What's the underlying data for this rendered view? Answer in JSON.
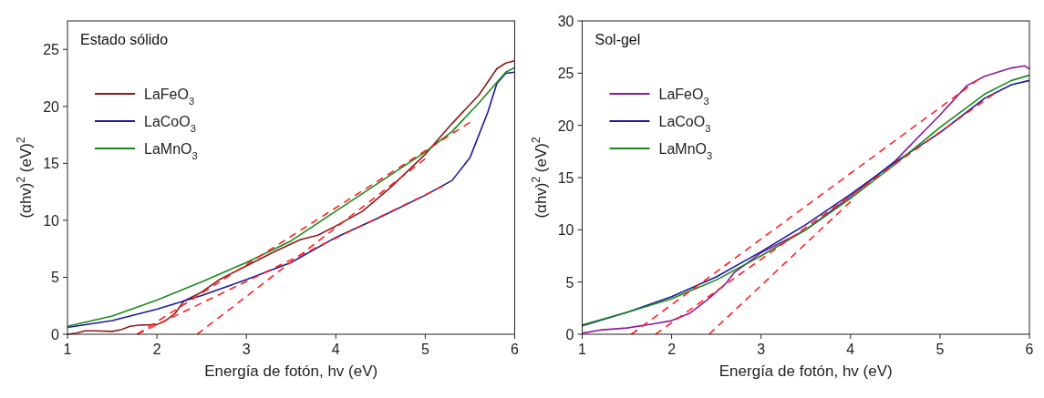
{
  "chart_data": [
    {
      "type": "line",
      "title": "Estado sólido",
      "xlabel": "Energía de fotón, hv (eV)",
      "ylabel": "(αhv)$^{2}$ (eV)$^{2}$",
      "xlim": [
        1,
        6
      ],
      "xticks": [
        1,
        2,
        3,
        4,
        5,
        6
      ],
      "ylim": [
        0,
        27.5
      ],
      "yticks": [
        0,
        5,
        10,
        15,
        20,
        25
      ],
      "legend": "top left",
      "grid": false,
      "series": [
        {
          "name": "LaFeO$_{3}$",
          "color": "#8b1a1a",
          "x": [
            1.0,
            1.1,
            1.2,
            1.3,
            1.5,
            1.6,
            1.7,
            1.8,
            2.0,
            2.1,
            2.2,
            2.3,
            2.5,
            2.7,
            3.0,
            3.3,
            3.6,
            3.8,
            4.0,
            4.3,
            4.6,
            5.0,
            5.3,
            5.6,
            5.8,
            5.9,
            6.0
          ],
          "values": [
            0,
            0.1,
            0.3,
            0.3,
            0.25,
            0.4,
            0.7,
            0.8,
            0.85,
            1.2,
            1.8,
            2.9,
            3.7,
            4.8,
            6.0,
            7.2,
            8.3,
            8.7,
            9.5,
            10.8,
            12.8,
            15.8,
            18.5,
            21.0,
            23.3,
            23.8,
            24.0
          ]
        },
        {
          "name": "LaCoO$_{3}$",
          "color": "#1a1a9a",
          "x": [
            1.0,
            1.5,
            2.0,
            2.5,
            3.0,
            3.5,
            4.0,
            4.5,
            5.0,
            5.3,
            5.5,
            5.7,
            5.8,
            5.9,
            6.0
          ],
          "values": [
            0.6,
            1.2,
            2.2,
            3.4,
            4.8,
            6.3,
            8.5,
            10.3,
            12.2,
            13.5,
            15.5,
            19.5,
            22.0,
            22.9,
            23.0
          ]
        },
        {
          "name": "LaMnO$_{3}$",
          "color": "#1a8a1a",
          "x": [
            1.0,
            1.5,
            2.0,
            2.5,
            3.0,
            3.5,
            4.0,
            4.5,
            5.0,
            5.3,
            5.6,
            5.8,
            5.9,
            6.0
          ],
          "values": [
            0.7,
            1.6,
            3.0,
            4.6,
            6.3,
            8.2,
            10.8,
            13.4,
            16.0,
            17.8,
            20.3,
            22.1,
            23.0,
            23.4
          ]
        },
        {
          "color": "#ff2020",
          "line_style": "dashed",
          "x": [
            1.78,
            5.5
          ],
          "values": [
            0,
            18.6
          ]
        },
        {
          "color": "#ff2020",
          "line_style": "dashed",
          "x": [
            1.78,
            5.2
          ],
          "values": [
            0,
            13.0
          ]
        },
        {
          "color": "#ff2020",
          "line_style": "dashed",
          "x": [
            2.45,
            5.0
          ],
          "values": [
            0,
            15.4
          ]
        }
      ]
    },
    {
      "type": "line",
      "title": "Sol-gel",
      "xlabel": "Energía de fotón, hv (eV)",
      "ylabel": "(αhv)$^{2}$ (eV)$^{2}$",
      "xlim": [
        1,
        6
      ],
      "xticks": [
        1,
        2,
        3,
        4,
        5,
        6
      ],
      "ylim": [
        0,
        30
      ],
      "yticks": [
        0,
        5,
        10,
        15,
        20,
        25,
        30
      ],
      "legend": "top left",
      "grid": false,
      "series": [
        {
          "name": "LaFeO$_{3}$",
          "color": "#8b1a9b",
          "x": [
            1.0,
            1.2,
            1.5,
            1.8,
            2.0,
            2.2,
            2.4,
            2.6,
            2.7,
            3.0,
            3.5,
            4.0,
            4.5,
            5.0,
            5.3,
            5.5,
            5.8,
            5.95,
            6.0
          ],
          "values": [
            0.1,
            0.4,
            0.6,
            1.0,
            1.3,
            2.0,
            3.3,
            4.8,
            5.9,
            7.8,
            10.0,
            13.2,
            16.6,
            21.0,
            23.8,
            24.7,
            25.5,
            25.7,
            25.4
          ]
        },
        {
          "name": "LaCoO$_{3}$",
          "color": "#1a1a9a",
          "x": [
            1.0,
            1.5,
            2.0,
            2.5,
            3.0,
            3.5,
            4.0,
            4.5,
            5.0,
            5.5,
            5.8,
            6.0
          ],
          "values": [
            0.8,
            2.1,
            3.6,
            5.5,
            7.9,
            10.5,
            13.4,
            16.5,
            19.3,
            22.6,
            23.9,
            24.3
          ]
        },
        {
          "name": "LaMnO$_{3}$",
          "color": "#1a8a1a",
          "x": [
            1.0,
            1.5,
            2.0,
            2.5,
            3.0,
            3.5,
            4.0,
            4.5,
            5.0,
            5.5,
            5.8,
            6.0
          ],
          "values": [
            0.9,
            2.1,
            3.4,
            5.2,
            7.5,
            10.0,
            13.0,
            16.3,
            19.8,
            23.0,
            24.3,
            24.8
          ]
        },
        {
          "color": "#ff2020",
          "line_style": "dashed",
          "x": [
            1.82,
            5.6
          ],
          "values": [
            0,
            23.0
          ]
        },
        {
          "color": "#ff2020",
          "line_style": "dashed",
          "x": [
            1.55,
            5.43
          ],
          "values": [
            0,
            24.4
          ]
        },
        {
          "color": "#ff2020",
          "line_style": "dashed",
          "x": [
            2.42,
            4.0
          ],
          "values": [
            0,
            12.7
          ]
        }
      ]
    }
  ]
}
